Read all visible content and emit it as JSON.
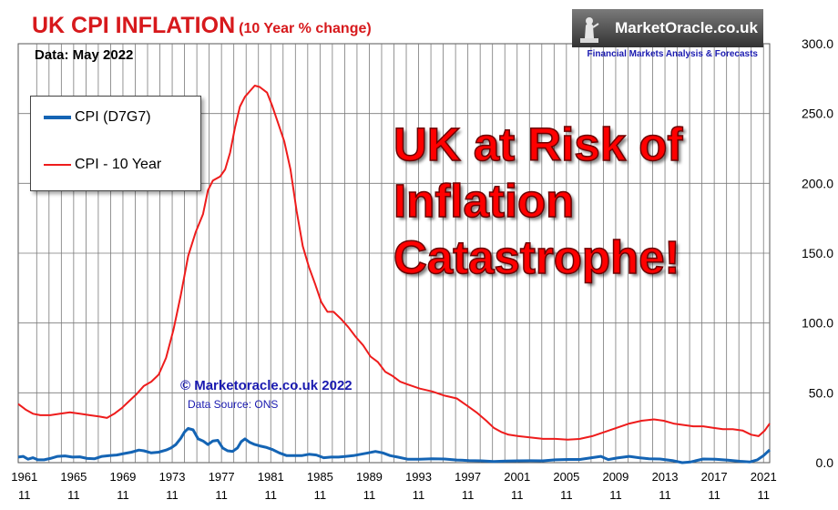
{
  "header": {
    "title": "UK CPI INFLATION",
    "subtitle": "(10 Year % change)",
    "data_date": "Data:  May 2022"
  },
  "brand": {
    "name": "MarketOracle.co.uk",
    "tagline": "Financial Markets Analysis & Forecasts"
  },
  "headline": {
    "lines": [
      "UK at Risk of",
      "Inflation",
      "Catastrophe!"
    ]
  },
  "credits": {
    "copyright": "© Marketoracle.co.uk 2022",
    "source": "Data Source: ONS"
  },
  "colors": {
    "cpi": "#1464b4",
    "cpi10": "#ee1c1c",
    "grid": "#7a7a7a",
    "title": "#d7191c",
    "accent": "#1a1ab0"
  },
  "chart_data": {
    "type": "line",
    "title": "UK CPI INFLATION (10 Year % change)",
    "xlabel": "",
    "ylabel": "",
    "ylim": [
      0,
      300
    ],
    "xlim": [
      1961.4,
      2022.4
    ],
    "x_ticks": [
      {
        "year": 1961,
        "label": "1961",
        "sub": "11"
      },
      {
        "year": 1965,
        "label": "1965",
        "sub": "11"
      },
      {
        "year": 1969,
        "label": "1969",
        "sub": "11"
      },
      {
        "year": 1973,
        "label": "1973",
        "sub": "11"
      },
      {
        "year": 1977,
        "label": "1977",
        "sub": "11"
      },
      {
        "year": 1981,
        "label": "1981",
        "sub": "11"
      },
      {
        "year": 1985,
        "label": "1985",
        "sub": "11"
      },
      {
        "year": 1989,
        "label": "1989",
        "sub": "11"
      },
      {
        "year": 1993,
        "label": "1993",
        "sub": "11"
      },
      {
        "year": 1997,
        "label": "1997",
        "sub": "11"
      },
      {
        "year": 2001,
        "label": "2001",
        "sub": "11"
      },
      {
        "year": 2005,
        "label": "2005",
        "sub": "11"
      },
      {
        "year": 2009,
        "label": "2009",
        "sub": "11"
      },
      {
        "year": 2013,
        "label": "2013",
        "sub": "11"
      },
      {
        "year": 2017,
        "label": "2017",
        "sub": "11"
      },
      {
        "year": 2021,
        "label": "2021",
        "sub": "11"
      }
    ],
    "y_ticks": [
      {
        "value": 0,
        "label": "0.0"
      },
      {
        "value": 50,
        "label": "50.0"
      },
      {
        "value": 100,
        "label": "100.0"
      },
      {
        "value": 150,
        "label": "150.0"
      },
      {
        "value": 200,
        "label": "200.0"
      },
      {
        "value": 250,
        "label": "250.0"
      },
      {
        "value": 300,
        "label": "300.0"
      }
    ],
    "grid": true,
    "legend_position": "top-left",
    "series": [
      {
        "name": "CPI (D7G7)",
        "key": "cpi",
        "x": [
          1961.4,
          1961.8,
          1962.2,
          1962.6,
          1963.0,
          1963.5,
          1964.0,
          1964.6,
          1965.2,
          1965.8,
          1966.4,
          1967.0,
          1967.6,
          1968.2,
          1968.8,
          1969.4,
          1970.0,
          1970.6,
          1971.2,
          1971.6,
          1972.2,
          1972.8,
          1973.4,
          1973.8,
          1974.2,
          1974.6,
          1974.9,
          1975.2,
          1975.6,
          1976.0,
          1976.4,
          1976.8,
          1977.2,
          1977.6,
          1978.0,
          1978.4,
          1978.8,
          1979.2,
          1979.5,
          1979.8,
          1980.2,
          1980.6,
          1981.0,
          1981.5,
          1982.0,
          1982.6,
          1983.2,
          1983.8,
          1984.4,
          1985.0,
          1985.6,
          1986.2,
          1986.8,
          1987.4,
          1988.0,
          1988.6,
          1989.2,
          1989.8,
          1990.4,
          1991.0,
          1991.6,
          1992.2,
          1993.0,
          1994.0,
          1995.0,
          1996.0,
          1997.0,
          1998.0,
          1999.0,
          2000.0,
          2001.0,
          2002.0,
          2003.0,
          2004.0,
          2005.0,
          2006.0,
          2007.0,
          2008.0,
          2008.7,
          2009.3,
          2010.0,
          2011.0,
          2011.8,
          2012.6,
          2013.5,
          2014.5,
          2015.3,
          2016.0,
          2017.0,
          2018.0,
          2019.0,
          2020.0,
          2020.8,
          2021.4,
          2021.9,
          2022.4
        ],
        "y": [
          4.0,
          4.5,
          2.5,
          3.5,
          2.0,
          2.0,
          3.0,
          4.5,
          4.8,
          4.0,
          4.2,
          3.0,
          2.8,
          4.5,
          5.0,
          5.5,
          6.5,
          7.5,
          9.0,
          8.5,
          7.0,
          7.5,
          9.0,
          10.5,
          13.0,
          17.5,
          22.0,
          24.5,
          23.5,
          17.0,
          15.5,
          13.0,
          15.5,
          16.0,
          10.5,
          8.5,
          8.0,
          10.5,
          15.0,
          17.0,
          14.5,
          13.0,
          12.0,
          11.0,
          9.5,
          7.0,
          5.0,
          5.0,
          5.0,
          6.0,
          5.5,
          3.5,
          4.0,
          4.0,
          4.5,
          5.0,
          6.0,
          7.0,
          8.0,
          7.0,
          5.0,
          4.0,
          2.5,
          2.5,
          2.8,
          2.6,
          1.9,
          1.5,
          1.3,
          0.8,
          1.2,
          1.3,
          1.4,
          1.3,
          2.0,
          2.3,
          2.3,
          3.6,
          4.5,
          2.2,
          3.3,
          4.5,
          3.5,
          2.8,
          2.6,
          1.5,
          0.0,
          0.5,
          2.6,
          2.5,
          1.8,
          1.0,
          0.5,
          2.0,
          5.0,
          9.1
        ]
      },
      {
        "name": "CPI - 10 Year",
        "key": "cpi10",
        "x": [
          1961.4,
          1962.0,
          1962.6,
          1963.2,
          1964.0,
          1964.8,
          1965.6,
          1966.4,
          1967.2,
          1968.0,
          1968.6,
          1969.2,
          1969.8,
          1970.4,
          1971.0,
          1971.6,
          1972.2,
          1972.8,
          1973.4,
          1974.0,
          1974.6,
          1975.2,
          1975.8,
          1976.4,
          1976.8,
          1977.2,
          1977.8,
          1978.2,
          1978.6,
          1979.0,
          1979.4,
          1979.8,
          1980.2,
          1980.6,
          1981.0,
          1981.6,
          1982.0,
          1982.5,
          1983.0,
          1983.5,
          1984.0,
          1984.5,
          1985.0,
          1985.5,
          1986.0,
          1986.5,
          1987.0,
          1987.6,
          1988.2,
          1988.8,
          1989.4,
          1990.0,
          1990.6,
          1991.2,
          1991.8,
          1992.4,
          1993.0,
          1994.0,
          1995.0,
          1996.0,
          1997.0,
          1997.8,
          1998.6,
          1999.4,
          2000.0,
          2000.6,
          2001.2,
          2002.0,
          2003.0,
          2004.0,
          2005.0,
          2006.0,
          2007.0,
          2008.0,
          2009.0,
          2010.0,
          2011.0,
          2012.0,
          2013.0,
          2013.8,
          2014.6,
          2015.4,
          2016.2,
          2017.0,
          2017.8,
          2018.6,
          2019.4,
          2020.2,
          2020.9,
          2021.5,
          2022.0,
          2022.4
        ],
        "y": [
          42,
          38,
          35,
          34,
          34,
          35,
          36,
          35,
          34,
          33,
          32,
          35,
          39,
          44,
          49,
          55,
          58,
          63,
          75,
          95,
          120,
          148,
          165,
          178,
          195,
          202,
          205,
          210,
          222,
          240,
          255,
          262,
          266,
          270,
          269,
          265,
          256,
          243,
          230,
          210,
          180,
          155,
          140,
          128,
          115,
          108,
          108,
          103,
          97,
          90,
          84,
          76,
          72,
          65,
          62,
          58,
          56,
          53,
          51,
          48,
          46,
          41,
          36,
          30,
          25,
          22,
          20,
          19,
          18,
          17,
          17,
          16.5,
          17,
          19,
          22,
          25,
          28,
          30,
          31,
          30,
          28,
          27,
          26,
          26,
          25,
          24,
          24,
          23,
          20,
          19,
          23,
          28
        ]
      }
    ]
  }
}
